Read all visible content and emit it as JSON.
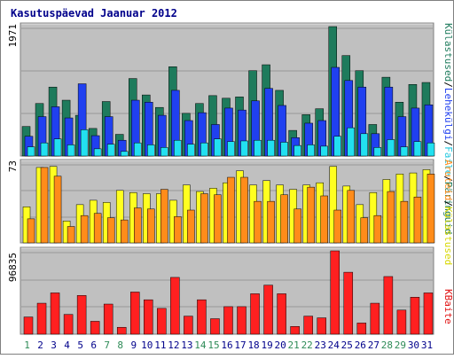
{
  "title": "Kasutuspäevad Jaanuar 2012",
  "colors": {
    "title": "#00008B",
    "plot_bg": "#C0C0C0",
    "weekend_label": "#2E8B57",
    "weekday_label": "#00008B",
    "visits": "#1E7B5C",
    "pages": "#2040F0",
    "files": "#22E0F0",
    "hosts": "#FFFF20",
    "kbytes_orange": "#FF8C1A",
    "kbytes": "#FF2020"
  },
  "right_labels": {
    "top": [
      {
        "text": "Külastused",
        "color": "#1E7B5C"
      },
      {
        "text": "Lehekülgi",
        "color": "#2040F0"
      },
      {
        "text": "Faile",
        "color": "#22C8E0"
      },
      {
        "text": "Päringuid",
        "color": "#1E7B5C"
      }
    ],
    "middle": [
      {
        "text": "Aruteid",
        "color": "#FF8C1A"
      },
      {
        "text": "Külastused",
        "color": "#D8D800"
      }
    ],
    "bottom": [
      {
        "text": "KBaite",
        "color": "#E01010"
      }
    ]
  },
  "chart_data": [
    {
      "type": "bar",
      "ymax_label": "1971",
      "ylim": [
        0,
        1971
      ],
      "categories": [
        "1",
        "2",
        "3",
        "4",
        "5",
        "6",
        "7",
        "8",
        "9",
        "10",
        "11",
        "12",
        "13",
        "14",
        "15",
        "16",
        "17",
        "18",
        "19",
        "20",
        "21",
        "22",
        "23",
        "24",
        "25",
        "26",
        "27",
        "28",
        "29",
        "30",
        "31"
      ],
      "weekend": [
        1,
        7,
        8,
        14,
        15,
        21,
        22,
        28,
        29
      ],
      "series": [
        {
          "values": [
            450,
            800,
            1050,
            850,
            620,
            420,
            830,
            330,
            1180,
            930,
            740,
            1360,
            650,
            800,
            920,
            880,
            900,
            1300,
            1390,
            1000,
            390,
            630,
            720,
            1971,
            1530,
            1300,
            480,
            1200,
            820,
            1090,
            1120
          ]
        },
        {
          "values": [
            300,
            600,
            750,
            580,
            1100,
            310,
            600,
            240,
            850,
            820,
            620,
            1000,
            540,
            660,
            480,
            730,
            700,
            840,
            1030,
            770,
            280,
            500,
            540,
            1350,
            1150,
            1050,
            340,
            1050,
            600,
            730,
            780
          ]
        },
        {
          "values": [
            140,
            200,
            260,
            170,
            400,
            110,
            180,
            70,
            200,
            170,
            130,
            240,
            180,
            200,
            260,
            220,
            230,
            240,
            240,
            210,
            160,
            170,
            150,
            300,
            430,
            340,
            130,
            250,
            140,
            220,
            200
          ]
        }
      ]
    },
    {
      "type": "bar",
      "ymax_label": "73",
      "ylim": [
        0,
        73
      ],
      "categories": [
        "1",
        "2",
        "3",
        "4",
        "5",
        "6",
        "7",
        "8",
        "9",
        "10",
        "11",
        "12",
        "13",
        "14",
        "15",
        "16",
        "17",
        "18",
        "19",
        "20",
        "21",
        "22",
        "23",
        "24",
        "25",
        "26",
        "27",
        "28",
        "29",
        "30",
        "31"
      ],
      "series": [
        {
          "values": [
            33,
            69,
            70,
            20,
            35,
            39,
            37,
            48,
            46,
            45,
            45,
            39,
            53,
            47,
            50,
            55,
            66,
            53,
            57,
            53,
            49,
            53,
            55,
            70,
            52,
            35,
            46,
            58,
            63,
            64,
            67
          ]
        },
        {
          "values": [
            22,
            69,
            61,
            15,
            25,
            27,
            23,
            21,
            32,
            31,
            49,
            24,
            30,
            45,
            44,
            60,
            60,
            38,
            38,
            44,
            31,
            51,
            43,
            30,
            48,
            23,
            25,
            47,
            38,
            42,
            63
          ]
        }
      ]
    },
    {
      "type": "bar",
      "ymax_label": "96835",
      "ylim": [
        0,
        96835
      ],
      "categories": [
        "1",
        "2",
        "3",
        "4",
        "5",
        "6",
        "7",
        "8",
        "9",
        "10",
        "11",
        "12",
        "13",
        "14",
        "15",
        "16",
        "17",
        "18",
        "19",
        "20",
        "21",
        "22",
        "23",
        "24",
        "25",
        "26",
        "27",
        "28",
        "29",
        "30",
        "31"
      ],
      "series": [
        {
          "values": [
            20000,
            36000,
            48000,
            23000,
            45000,
            15000,
            35000,
            8000,
            49000,
            40000,
            30000,
            66000,
            21000,
            40000,
            18000,
            32000,
            32000,
            47000,
            57000,
            47000,
            9000,
            21000,
            19000,
            96835,
            72000,
            13000,
            36000,
            67000,
            28000,
            43000,
            48000
          ]
        }
      ]
    }
  ]
}
